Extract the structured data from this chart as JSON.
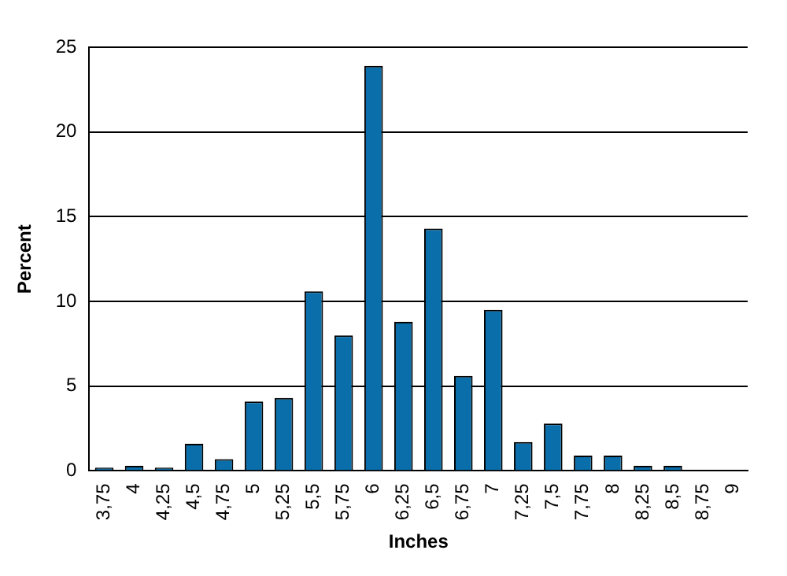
{
  "chart_data": {
    "type": "bar",
    "xlabel": "Inches",
    "ylabel": "Percent",
    "categories": [
      "3,75",
      "4",
      "4,25",
      "4,5",
      "4,75",
      "5",
      "5,25",
      "5,5",
      "5,75",
      "6",
      "6,25",
      "6,5",
      "6,75",
      "7",
      "7,25",
      "7,5",
      "7,75",
      "8",
      "8,25",
      "8,5",
      "8,75",
      "9"
    ],
    "values": [
      0.2,
      0.3,
      0.2,
      1.6,
      0.7,
      4.1,
      4.3,
      10.6,
      8.0,
      23.9,
      8.8,
      14.3,
      5.6,
      9.5,
      1.7,
      2.8,
      0.9,
      0.9,
      0.3,
      0.3,
      0,
      0
    ],
    "color": "#0a6eaa",
    "ylim": [
      0,
      25
    ],
    "yticks": [
      0,
      5,
      10,
      15,
      20,
      25
    ],
    "grid": "y",
    "legend": false
  }
}
